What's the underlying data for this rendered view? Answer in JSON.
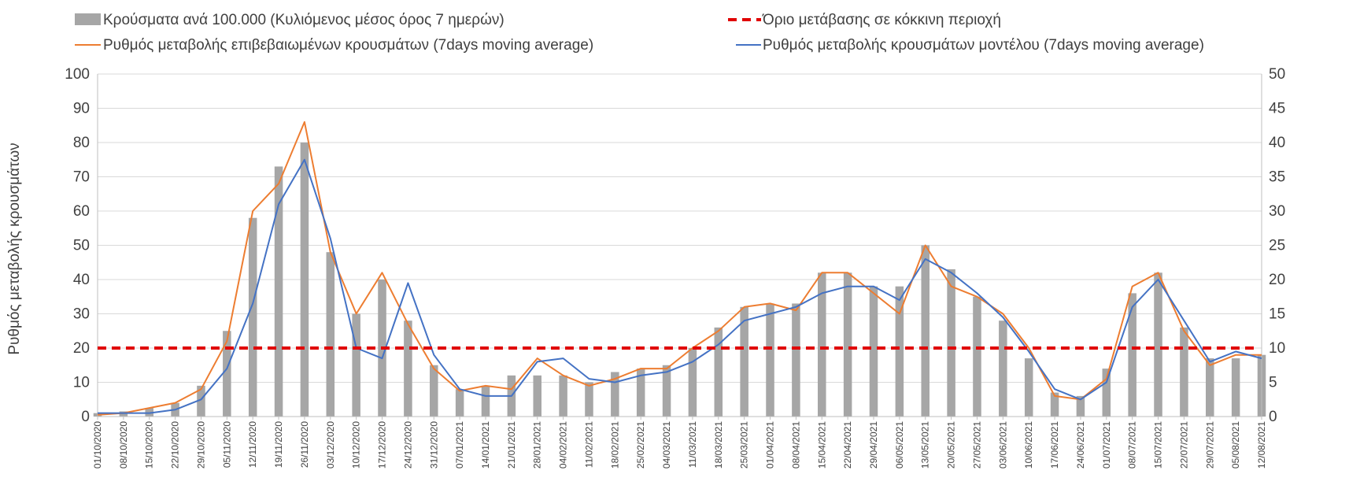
{
  "chart_data": {
    "type": "bar+line",
    "title": "",
    "ylabel": "Ρυθμός μεταβολής κρουσμάτων",
    "ylim": [
      0,
      100
    ],
    "yticks": [
      0,
      10,
      20,
      30,
      40,
      50,
      60,
      70,
      80,
      90,
      100
    ],
    "y2lim": [
      0,
      50
    ],
    "y2ticks": [
      0,
      5,
      10,
      15,
      20,
      25,
      30,
      35,
      40,
      45,
      50
    ],
    "grid": true,
    "legend_position": "top",
    "x_categories": [
      "01/10/2020",
      "08/10/2020",
      "15/10/2020",
      "22/10/2020",
      "29/10/2020",
      "05/11/2020",
      "12/11/2020",
      "19/11/2020",
      "26/11/2020",
      "03/12/2020",
      "10/12/2020",
      "17/12/2020",
      "24/12/2020",
      "31/12/2020",
      "07/01/2021",
      "14/01/2021",
      "21/01/2021",
      "28/01/2021",
      "04/02/2021",
      "11/02/2021",
      "18/02/2021",
      "25/02/2021",
      "04/03/2021",
      "11/03/2021",
      "18/03/2021",
      "25/03/2021",
      "01/04/2021",
      "08/04/2021",
      "15/04/2021",
      "22/04/2021",
      "29/04/2021",
      "06/05/2021",
      "13/05/2021",
      "20/05/2021",
      "27/05/2021",
      "03/06/2021",
      "10/06/2021",
      "17/06/2021",
      "24/06/2021",
      "01/07/2021",
      "08/07/2021",
      "15/07/2021",
      "22/07/2021",
      "29/07/2021",
      "05/08/2021",
      "12/08/2021"
    ],
    "threshold": {
      "name": "Όριο μετάβασης σε κόκκινη περιοχή",
      "value": 20
    },
    "series": [
      {
        "name": "Κρούσματα ανά 100.000 (Κυλιόμενος μέσος όρος 7 ημερών)",
        "kind": "bar",
        "axis": "primary",
        "values": [
          1,
          1.5,
          2.5,
          4,
          9,
          25,
          58,
          73,
          80,
          48,
          30,
          40,
          28,
          15,
          8,
          9,
          12,
          12,
          12,
          10,
          13,
          14,
          15,
          20,
          26,
          32,
          33,
          33,
          42,
          42,
          38,
          38,
          50,
          43,
          35,
          28,
          17,
          7,
          6,
          14,
          36,
          42,
          26,
          17,
          17,
          18
        ]
      },
      {
        "name": "Ρυθμός μεταβολής επιβεβαιωμένων κρουσμάτων (7days moving average)",
        "kind": "line",
        "axis": "primary",
        "color": "#ED7D31",
        "values": [
          0.5,
          1,
          2.5,
          4,
          8,
          22,
          60,
          68,
          86,
          48,
          30,
          42,
          27,
          14,
          7.5,
          9,
          8,
          17,
          12,
          9,
          11,
          14,
          14,
          20,
          25,
          32,
          33,
          31,
          42,
          42,
          36,
          30,
          50,
          38,
          35,
          30,
          20,
          6,
          5,
          11,
          38,
          42,
          25,
          15,
          18,
          18
        ]
      },
      {
        "name": "Ρυθμός μεταβολής κρουσμάτων μοντέλου (7days moving average)",
        "kind": "line",
        "axis": "primary",
        "color": "#4472C4",
        "values": [
          1,
          1,
          1,
          2,
          5,
          14,
          33,
          62,
          75,
          52,
          20,
          17,
          39,
          18,
          8,
          6,
          6,
          16,
          17,
          11,
          10,
          12,
          13,
          16,
          21,
          28,
          30,
          32,
          36,
          38,
          38,
          34,
          46,
          42,
          36,
          29,
          19,
          8,
          5,
          10,
          32,
          40,
          28,
          16,
          19,
          17
        ]
      }
    ]
  },
  "legend": {
    "bars": "Κρούσματα ανά 100.000 (Κυλιόμενος μέσος όρος 7 ημερών)",
    "threshold": "Όριο μετάβασης σε κόκκινη περιοχή",
    "orange": "Ρυθμός μεταβολής επιβεβαιωμένων κρουσμάτων (7days moving average)",
    "blue": "Ρυθμός μεταβολής κρουσμάτων μοντέλου (7days moving average)"
  },
  "colors": {
    "bars": "#A6A6A6",
    "threshold": "#E00000",
    "orange": "#ED7D31",
    "blue": "#4472C4",
    "grid": "#D9D9D9",
    "axis": "#BFBFBF"
  }
}
